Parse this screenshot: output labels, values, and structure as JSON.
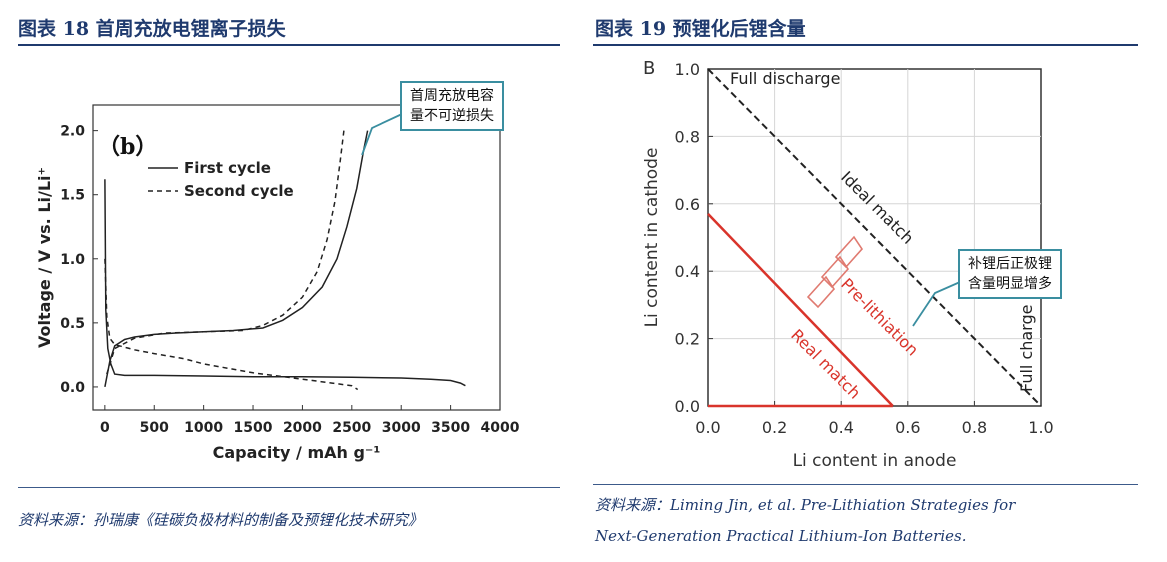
{
  "left": {
    "title": "图表 18   首周充放电锂离子损失",
    "source": "资料来源：孙瑞康《硅碳负极材料的制备及预锂化技术研究》",
    "callout": [
      "首周充放电容",
      "量不可逆损失"
    ]
  },
  "right": {
    "title": "图表 19   预锂化后锂含量",
    "source_line1": "资料来源：Liming Jin, et al. Pre-Lithiation Strategies for",
    "source_line2": "Next-Generation Practical Lithium-Ion Batteries.",
    "callout": [
      "补锂后正极锂",
      "含量明显增多"
    ]
  },
  "chart_data": [
    {
      "type": "line",
      "panel_label": "（b）",
      "title": "",
      "xlabel": "Capacity / mAh g⁻¹",
      "ylabel": "Voltage / V vs. Li/Li⁺",
      "xlim": [
        -120,
        4000
      ],
      "ylim": [
        -0.18,
        2.2
      ],
      "xticks": [
        0,
        500,
        1000,
        1500,
        2000,
        2500,
        3000,
        3500,
        4000
      ],
      "yticks": [
        0.0,
        0.5,
        1.0,
        1.5,
        2.0
      ],
      "ytick_labels": [
        "0.0",
        "0.5",
        "1.0",
        "1.5",
        "2.0"
      ],
      "legend": [
        "First cycle",
        "Second cycle"
      ],
      "legend_position": "top-left",
      "series": [
        {
          "name": "First cycle discharge",
          "style": "solid",
          "x": [
            0,
            10,
            30,
            60,
            100,
            200,
            500,
            1000,
            1500,
            2000,
            2500,
            3000,
            3300,
            3500,
            3600,
            3650
          ],
          "y": [
            1.62,
            0.6,
            0.3,
            0.18,
            0.1,
            0.09,
            0.09,
            0.085,
            0.08,
            0.08,
            0.075,
            0.07,
            0.06,
            0.05,
            0.03,
            0.01
          ]
        },
        {
          "name": "First cycle charge",
          "style": "solid",
          "x": [
            0,
            50,
            100,
            200,
            300,
            500,
            700,
            1000,
            1300,
            1600,
            1800,
            2000,
            2200,
            2350,
            2450,
            2550,
            2620,
            2660
          ],
          "y": [
            0.0,
            0.2,
            0.32,
            0.37,
            0.39,
            0.41,
            0.42,
            0.43,
            0.44,
            0.46,
            0.52,
            0.62,
            0.78,
            1.0,
            1.25,
            1.55,
            1.85,
            2.0
          ]
        },
        {
          "name": "Second cycle discharge",
          "style": "dashed",
          "x": [
            0,
            20,
            50,
            100,
            300,
            500,
            800,
            1000,
            1500,
            2000,
            2300,
            2500,
            2560
          ],
          "y": [
            1.0,
            0.55,
            0.38,
            0.33,
            0.29,
            0.26,
            0.22,
            0.18,
            0.11,
            0.06,
            0.03,
            0.01,
            -0.02
          ]
        },
        {
          "name": "Second cycle charge",
          "style": "dashed",
          "x": [
            20,
            100,
            300,
            600,
            1000,
            1400,
            1600,
            1800,
            2000,
            2150,
            2250,
            2330,
            2380,
            2420
          ],
          "y": [
            0.1,
            0.3,
            0.38,
            0.42,
            0.43,
            0.44,
            0.48,
            0.56,
            0.7,
            0.9,
            1.15,
            1.45,
            1.75,
            2.0
          ]
        }
      ]
    },
    {
      "type": "line",
      "panel_label": "B",
      "title": "",
      "xlabel": "Li content in anode",
      "ylabel": "Li content in cathode",
      "xlim": [
        0,
        1
      ],
      "ylim": [
        0,
        1
      ],
      "xticks": [
        0,
        0.2,
        0.4,
        0.6,
        0.8,
        1.0
      ],
      "yticks": [
        0,
        0.2,
        0.4,
        0.6,
        0.8,
        1.0
      ],
      "xtick_labels": [
        "0.0",
        "0.2",
        "0.4",
        "0.6",
        "0.8",
        "1.0"
      ],
      "ytick_labels": [
        "0.0",
        "0.2",
        "0.4",
        "0.6",
        "0.8",
        "1.0"
      ],
      "grid": true,
      "series": [
        {
          "name": "Ideal match",
          "style": "dashed",
          "color": "#222222",
          "x": [
            0,
            1
          ],
          "y": [
            1,
            0
          ]
        },
        {
          "name": "Real match",
          "style": "solid",
          "color": "#d9342b",
          "x": [
            0,
            0.555
          ],
          "y": [
            0.57,
            0
          ]
        },
        {
          "name": "Real match baseline",
          "style": "solid",
          "color": "#d9342b",
          "x": [
            0,
            0.555
          ],
          "y": [
            0,
            0
          ]
        }
      ],
      "annotations": [
        "Full discharge",
        "Ideal match",
        "Pre-lithiation",
        "Real match",
        "Full charge"
      ]
    }
  ],
  "colors": {
    "accent": "#1f3a6e",
    "callout_border": "#3a8ea0",
    "real_match": "#d9342b"
  }
}
